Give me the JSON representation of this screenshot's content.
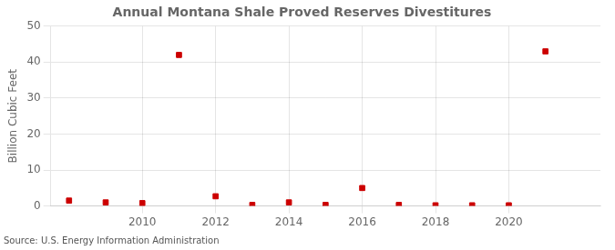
{
  "chart_data": {
    "type": "scatter",
    "title": "Annual Montana Shale Proved Reserves Divestitures",
    "ylabel": "Billion Cubic Feet",
    "annotations": [
      "Source: U.S. Energy Information Administration"
    ],
    "x": [
      2008,
      2009,
      2010,
      2011,
      2012,
      2013,
      2014,
      2015,
      2016,
      2017,
      2018,
      2019,
      2020,
      2021
    ],
    "values": [
      1.5,
      1.0,
      0.8,
      42.0,
      2.7,
      0.3,
      1.0,
      0.3,
      5.0,
      0.3,
      0.2,
      0.2,
      0.2,
      43.0
    ],
    "color": "#cc0000",
    "marker": "square",
    "xlim": [
      2007.5,
      2022.5
    ],
    "xticks": [
      2010,
      2012,
      2014,
      2016,
      2018,
      2020
    ],
    "ylim": [
      0,
      50
    ],
    "yticks": [
      0,
      10,
      20,
      30,
      40,
      50
    ],
    "grid": true
  }
}
